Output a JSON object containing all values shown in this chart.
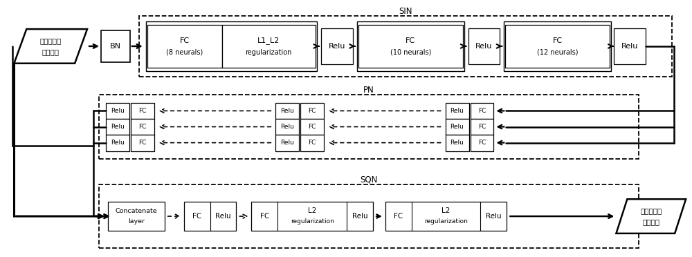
{
  "bg_color": "#ffffff",
  "input_label_1": "层叠太阳能",
  "input_label_2": "电池结构",
  "output_label_1": "层叠太阳能",
  "output_label_2": "电池电流",
  "sin_label": "SIN",
  "pn_label": "PN",
  "sqn_label": "SQN",
  "bn_label": "BN"
}
